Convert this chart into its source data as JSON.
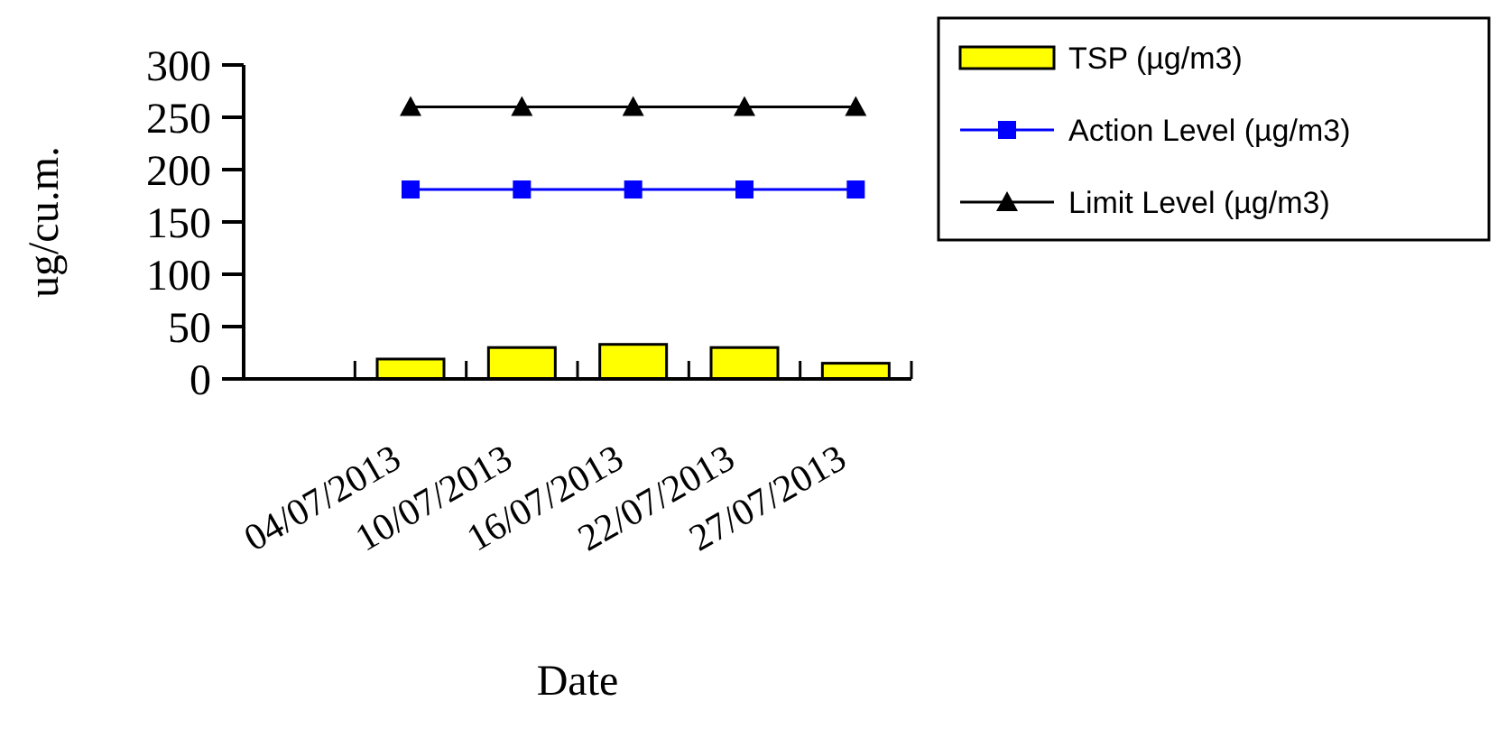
{
  "chart_data": {
    "type": "bar",
    "xlabel": "Date",
    "ylabel": "ug/cu.m.",
    "categories": [
      null,
      "04/07/2013",
      "10/07/2013",
      "16/07/2013",
      "22/07/2013",
      "27/07/2013"
    ],
    "series": [
      {
        "name": "TSP (µg/m3)",
        "color": "#ffff00",
        "values": [
          null,
          19,
          30,
          33,
          30,
          15
        ]
      },
      {
        "name": "Action Level (µg/m3)",
        "type": "line",
        "color": "#0000ff",
        "marker": "square",
        "values": [
          null,
          181,
          181,
          181,
          181,
          181
        ]
      },
      {
        "name": "Limit Level (µg/m3)",
        "type": "line",
        "color": "#000000",
        "marker": "triangle",
        "values": [
          null,
          260,
          260,
          260,
          260,
          260
        ]
      }
    ],
    "ylim": [
      0,
      300
    ],
    "yticks": [
      0,
      50,
      100,
      150,
      200,
      250,
      300
    ],
    "grid": false,
    "legend": "right"
  }
}
